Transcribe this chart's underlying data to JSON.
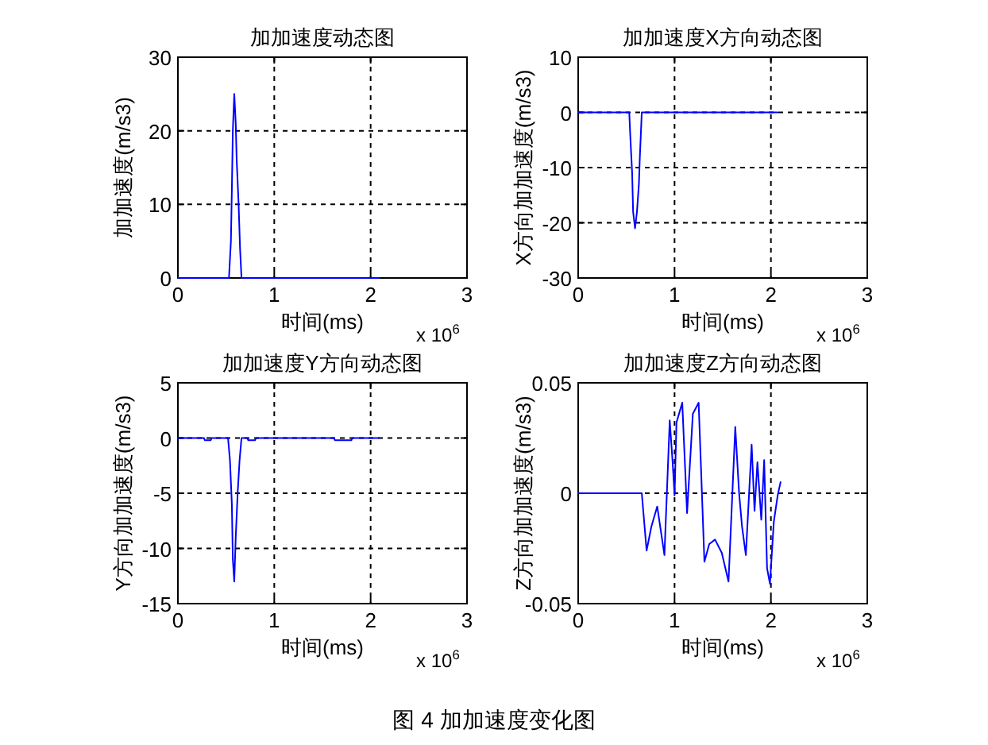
{
  "chart_data": [
    {
      "type": "line",
      "title": "加加速度动态图",
      "xlabel": "时间(ms)",
      "ylabel": "加加速度(m/s3)",
      "xlim": [
        0,
        3
      ],
      "ylim": [
        0,
        30
      ],
      "xticks": [
        0,
        1,
        2,
        3
      ],
      "yticks": [
        0,
        10,
        20,
        30
      ],
      "grid": true,
      "annotations": [
        "x 10$^{6}$"
      ],
      "series": [
        {
          "color": "#0000ff",
          "x": [
            0,
            0.53,
            0.55,
            0.56,
            0.57,
            0.585,
            0.6,
            0.61,
            0.63,
            0.645,
            0.66,
            2.09
          ],
          "values": [
            0,
            0,
            5,
            12,
            20,
            25,
            21,
            16,
            10,
            4,
            0,
            0
          ]
        }
      ]
    },
    {
      "type": "line",
      "title": "加加速度X方向动态图",
      "xlabel": "时间(ms)",
      "ylabel": "X方向加加速度(m/s3)",
      "xlim": [
        0,
        3
      ],
      "ylim": [
        -30,
        10
      ],
      "xticks": [
        0,
        1,
        2,
        3
      ],
      "yticks": [
        -30,
        -20,
        -10,
        0,
        10
      ],
      "grid": true,
      "annotations": [
        "x 10$^{6}$"
      ],
      "series": [
        {
          "color": "#0000ff",
          "x": [
            0,
            0.53,
            0.54,
            0.56,
            0.57,
            0.59,
            0.61,
            0.63,
            0.64,
            0.66,
            2.07
          ],
          "values": [
            0,
            0,
            -4,
            -11,
            -18,
            -21,
            -18,
            -13,
            -8,
            0,
            0
          ]
        }
      ]
    },
    {
      "type": "line",
      "title": "加加速度Y方向动态图",
      "xlabel": "时间(ms)",
      "ylabel": "Y方向加加速度(m/s3)",
      "xlim": [
        0,
        3
      ],
      "ylim": [
        -15,
        5
      ],
      "xticks": [
        0,
        1,
        2,
        3
      ],
      "yticks": [
        -15,
        -10,
        -5,
        0,
        5
      ],
      "grid": true,
      "annotations": [
        "x 10$^{6}$"
      ],
      "series": [
        {
          "color": "#0000ff",
          "x": [
            0,
            0.27,
            0.28,
            0.34,
            0.35,
            0.52,
            0.54,
            0.56,
            0.57,
            0.585,
            0.6,
            0.62,
            0.64,
            0.66,
            0.72,
            0.73,
            0.8,
            0.81,
            1.62,
            1.63,
            1.8,
            1.81,
            2.09
          ],
          "values": [
            0,
            0,
            -0.2,
            -0.2,
            0,
            0,
            -2,
            -6,
            -11,
            -13,
            -9,
            -5,
            -2,
            0,
            0,
            -0.2,
            -0.2,
            0,
            0,
            -0.2,
            -0.2,
            0,
            0
          ]
        }
      ]
    },
    {
      "type": "line",
      "title": "加加速度Z方向动态图",
      "xlabel": "时间(ms)",
      "ylabel": "Z方向加加速度(m/s3)",
      "xlim": [
        0,
        3
      ],
      "ylim": [
        -0.05,
        0.05
      ],
      "xticks": [
        0,
        1,
        2,
        3
      ],
      "yticks": [
        -0.05,
        0,
        0.05
      ],
      "grid": true,
      "annotations": [
        "x 10$^{6}$",
        "图 4  加加速度变化图"
      ],
      "series": [
        {
          "color": "#0000ff",
          "x": [
            0,
            0.66,
            0.71,
            0.76,
            0.82,
            0.895,
            0.95,
            0.98,
            1.0,
            1.02,
            1.08,
            1.13,
            1.19,
            1.25,
            1.31,
            1.36,
            1.42,
            1.49,
            1.56,
            1.63,
            1.67,
            1.7,
            1.74,
            1.8,
            1.83,
            1.86,
            1.9,
            1.93,
            1.96,
            1.99,
            2.03,
            2.07,
            2.1
          ],
          "values": [
            0,
            0,
            -0.026,
            -0.015,
            -0.006,
            -0.028,
            0.033,
            0.014,
            -0.001,
            0.032,
            0.041,
            -0.009,
            0.036,
            0.041,
            -0.031,
            -0.023,
            -0.021,
            -0.027,
            -0.04,
            0.03,
            0,
            -0.015,
            -0.028,
            0.022,
            -0.008,
            0.014,
            -0.012,
            0.015,
            -0.034,
            -0.041,
            -0.013,
            -0.001,
            0.005
          ]
        }
      ]
    }
  ]
}
